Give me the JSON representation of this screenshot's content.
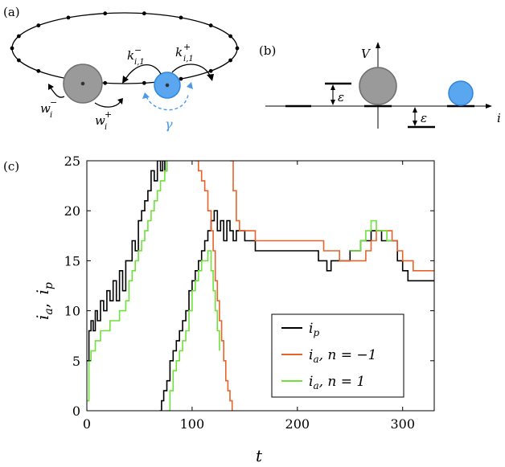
{
  "panel_a": {
    "label": "(a)",
    "rate_labels": {
      "k_minus": "k",
      "k_minus_sup": "−",
      "k_minus_sub": "i,1",
      "k_plus": "k",
      "k_plus_sup": "+",
      "k_plus_sub": "i,1",
      "w_minus": "w",
      "w_minus_sup": "−",
      "w_minus_sub": "i",
      "w_plus": "w",
      "w_plus_sup": "+",
      "w_plus_sub": "i",
      "gamma": "γ"
    },
    "colors": {
      "passive": "#9a9a9a",
      "active": "#5aa7ef",
      "gamma": "#4a9ae6"
    }
  },
  "panel_b": {
    "label": "(b)",
    "y_axis_label": "V",
    "x_axis_label": "i",
    "epsilon_upper": "ε",
    "epsilon_lower": "ε"
  },
  "panel_c": {
    "label": "(c)",
    "xlabel": "t",
    "ylabel_part1": "i",
    "ylabel_sub1": "a",
    "ylabel_sep": ", ",
    "ylabel_part2": "i",
    "ylabel_sub2": "p"
  },
  "chart_data": {
    "type": "line",
    "xlim": [
      0,
      330
    ],
    "ylim": [
      0,
      25
    ],
    "xticks": [
      0,
      100,
      200,
      300
    ],
    "yticks": [
      0,
      5,
      10,
      15,
      20,
      25
    ],
    "grid": false,
    "legend_position": "bottom-right",
    "legend": [
      {
        "main": "i",
        "sub": "p",
        "extra": ""
      },
      {
        "main": "i",
        "sub": "a",
        "extra": ", n = −1"
      },
      {
        "main": "i",
        "sub": "a",
        "extra": ", n = 1"
      }
    ],
    "series": [
      {
        "color": "#000000",
        "x": [
          0,
          2,
          4,
          6,
          8,
          10,
          13,
          16,
          19,
          22,
          25,
          28,
          31,
          34,
          37,
          40,
          43,
          46,
          49,
          52,
          55,
          58,
          61,
          64,
          67,
          70,
          72,
          74,
          76
        ],
        "y": [
          5,
          8,
          9,
          8,
          10,
          9,
          11,
          10,
          12,
          11,
          13,
          11,
          14,
          12,
          15,
          15,
          17,
          16,
          19,
          20,
          21,
          22,
          24,
          23,
          25,
          24,
          25,
          24,
          25
        ]
      },
      {
        "color": "#000000",
        "x": [
          69,
          71,
          73,
          76,
          79,
          82,
          85,
          88,
          91,
          94,
          97,
          100,
          103,
          106,
          109,
          112,
          115,
          118,
          121,
          124,
          127,
          130,
          133,
          136,
          139,
          142,
          145,
          150,
          155,
          160,
          170,
          180,
          190,
          200,
          210,
          220,
          225,
          228,
          232,
          236,
          240,
          250,
          260,
          270,
          275,
          280,
          285,
          290,
          295,
          300,
          305,
          310,
          315,
          320,
          325,
          330
        ],
        "y": [
          0,
          1,
          2,
          3,
          5,
          6,
          7,
          8,
          9,
          10,
          12,
          13,
          14,
          15,
          16,
          17,
          18,
          19,
          20,
          18,
          19,
          17,
          19,
          18,
          17,
          18,
          18,
          17,
          17,
          16,
          16,
          16,
          16,
          16,
          16,
          15,
          15,
          14,
          15,
          15,
          15,
          16,
          17,
          18,
          18,
          17,
          17,
          17,
          15,
          14,
          13,
          13,
          13,
          13,
          13,
          13
        ]
      },
      {
        "color": "#e8622a",
        "x": [
          103,
          106,
          109,
          112,
          115,
          118,
          120,
          122,
          124,
          126,
          128,
          130,
          132,
          134,
          136,
          138
        ],
        "y": [
          25,
          24,
          23,
          22,
          20,
          18,
          16,
          13,
          11,
          9,
          7,
          5,
          3,
          2,
          1,
          0
        ]
      },
      {
        "color": "#e8622a",
        "x": [
          136,
          139,
          142,
          145,
          150,
          155,
          160,
          170,
          180,
          190,
          200,
          210,
          220,
          225,
          228,
          232,
          236,
          240,
          250,
          260,
          265,
          270,
          275,
          280,
          285,
          290,
          295,
          300,
          305,
          310,
          315,
          320,
          325,
          330
        ],
        "y": [
          25,
          22,
          19,
          18,
          18,
          18,
          17,
          17,
          17,
          17,
          17,
          17,
          17,
          16,
          16,
          16,
          16,
          15,
          15,
          15,
          16,
          17,
          18,
          18,
          18,
          17,
          16,
          15,
          15,
          14,
          14,
          14,
          14,
          14
        ]
      },
      {
        "color": "#6ee13a",
        "x": [
          0,
          2,
          4,
          6,
          8,
          10,
          13,
          16,
          19,
          22,
          25,
          28,
          31,
          34,
          37,
          40,
          43,
          46,
          49,
          52,
          55,
          58,
          61,
          64,
          67,
          70,
          72,
          74,
          76
        ],
        "y": [
          1,
          5,
          6,
          6,
          7,
          7,
          8,
          8,
          8,
          9,
          9,
          9,
          10,
          10,
          11,
          13,
          14,
          15,
          16,
          17,
          18,
          19,
          20,
          21,
          22,
          23,
          23,
          24,
          25
        ]
      },
      {
        "color": "#6ee13a",
        "x": [
          76,
          79,
          82,
          85,
          88,
          91,
          94,
          97,
          100,
          103,
          106,
          109,
          112,
          115,
          118,
          120,
          122,
          124,
          126
        ],
        "y": [
          0,
          2,
          4,
          5,
          6,
          7,
          8,
          10,
          12,
          13,
          14,
          15,
          15,
          16,
          14,
          12,
          10,
          8,
          6
        ]
      },
      {
        "color": "#6ee13a",
        "x": [
          250,
          260,
          265,
          270,
          275,
          280,
          285,
          290
        ],
        "y": [
          16,
          17,
          18,
          19,
          18,
          18,
          17,
          17
        ]
      }
    ]
  }
}
